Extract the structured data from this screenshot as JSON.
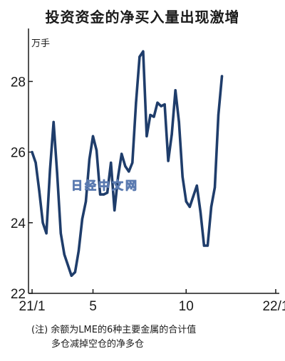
{
  "title": "投资资金的净买入量出现激增",
  "unit_label": "万手",
  "watermark": "日经中文网",
  "note": {
    "prefix": "(注)",
    "line1": "余额为LME的6种主要金属的合计值",
    "line2": "多仓减掉空仓的净多仓"
  },
  "colors": {
    "line": "#1f3d6b",
    "axis": "#1a1a1a",
    "watermark_stroke": "#5a7ab0"
  },
  "chart_data": {
    "type": "line",
    "title": "投资资金的净买入量出现激增",
    "ylabel": "万手",
    "ylim": [
      22,
      29.5
    ],
    "yticks": [
      22,
      24,
      26,
      28
    ],
    "ytick_labels": [
      "22",
      "24",
      "26",
      "28"
    ],
    "xticks": [
      0,
      17,
      43,
      68
    ],
    "xtick_labels": [
      "21/1",
      "5",
      "10",
      "22/1"
    ],
    "xlim": [
      -1,
      69
    ],
    "grid": false,
    "series": [
      {
        "values": [
          26.0,
          25.7,
          24.9,
          24.0,
          23.7,
          25.5,
          26.85,
          25.4,
          23.7,
          23.1,
          22.8,
          22.5,
          22.6,
          23.2,
          24.1,
          24.6,
          25.8,
          26.45,
          26.05,
          24.8,
          24.8,
          24.85,
          25.7,
          24.35,
          25.3,
          25.95,
          25.6,
          25.45,
          25.7,
          27.4,
          28.7,
          28.85,
          26.45,
          27.05,
          27.0,
          27.4,
          27.3,
          27.35,
          25.75,
          26.5,
          27.75,
          26.85,
          25.3,
          24.6,
          24.45,
          24.75,
          25.05,
          24.3,
          23.35,
          23.35,
          24.45,
          25.0,
          27.05,
          28.15
        ]
      }
    ]
  }
}
